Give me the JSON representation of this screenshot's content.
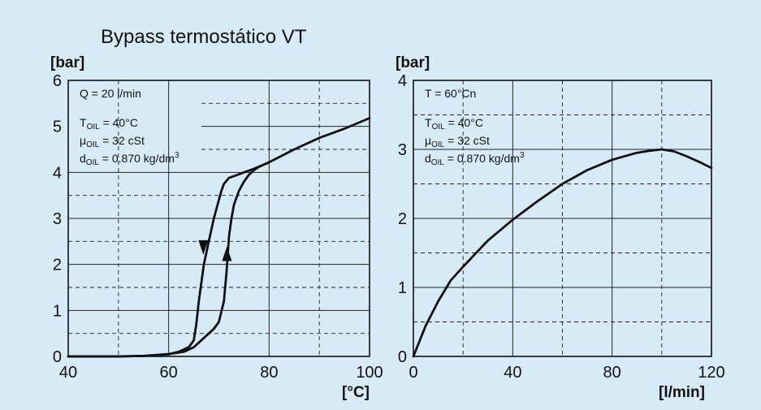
{
  "title": "Bypass termostático VT",
  "chart_data": [
    {
      "type": "line",
      "title": "Bypass termostático VT",
      "ylabel": "[bar]",
      "xlabel": "[°C]",
      "xlim": [
        40,
        100
      ],
      "ylim": [
        0,
        6
      ],
      "x_ticks": [
        "40",
        "60",
        "80",
        "100"
      ],
      "y_ticks": [
        "0",
        "1",
        "2",
        "3",
        "4",
        "5",
        "6"
      ],
      "grid": true,
      "notes": {
        "q": "Q = 20 l/min",
        "t_main": "T",
        "t_sub": "OIL",
        "t_val": " = 40°C",
        "mu_main": "μ",
        "mu_sub": "OIL",
        "mu_val": " = 32 cSt",
        "d_main": "d",
        "d_sub": "OIL",
        "d_val": " = 0.870 kg/dm",
        "d_exp": "3"
      },
      "series": [
        {
          "direction": "rising",
          "x": [
            40,
            50,
            55,
            60,
            63,
            65,
            67,
            69,
            70,
            71,
            71.5,
            72,
            72.5,
            73,
            74,
            75,
            76,
            77,
            78,
            80,
            85,
            90,
            95,
            100
          ],
          "y": [
            0,
            0,
            0.01,
            0.05,
            0.1,
            0.2,
            0.4,
            0.6,
            0.75,
            1.2,
            1.8,
            2.6,
            3.0,
            3.3,
            3.6,
            3.8,
            3.95,
            4.05,
            4.12,
            4.22,
            4.5,
            4.75,
            4.95,
            5.18
          ]
        },
        {
          "direction": "falling",
          "x": [
            40,
            50,
            55,
            60,
            62,
            64,
            65,
            65.5,
            66,
            67,
            68,
            69,
            70,
            70.5,
            71,
            72,
            73,
            75,
            77,
            80
          ],
          "y": [
            0,
            0,
            0.01,
            0.05,
            0.1,
            0.2,
            0.35,
            0.7,
            1.2,
            2.0,
            2.5,
            3.0,
            3.4,
            3.6,
            3.75,
            3.88,
            3.92,
            4.0,
            4.08,
            4.22
          ]
        }
      ]
    },
    {
      "type": "line",
      "ylabel": "[bar]",
      "xlabel": "[l/min]",
      "xlim": [
        0,
        120
      ],
      "ylim": [
        0,
        4
      ],
      "x_ticks": [
        "0",
        "40",
        "80",
        "120"
      ],
      "y_ticks": [
        "0",
        "1",
        "2",
        "3",
        "4"
      ],
      "grid": true,
      "notes": {
        "t": "T = 60°Cn",
        "t_main": "T",
        "t_sub": "OIL",
        "t_val": " = 40°C",
        "mu_main": "μ",
        "mu_sub": "OIL",
        "mu_val": " = 32 cSt",
        "d_main": "d",
        "d_sub": "OIL",
        "d_val": " = 0.870 kg/dm",
        "d_exp": "3"
      },
      "series": [
        {
          "x": [
            0,
            5,
            10,
            15,
            20,
            30,
            40,
            50,
            60,
            70,
            80,
            90,
            95,
            100,
            105,
            110,
            115,
            120
          ],
          "y": [
            0,
            0.45,
            0.8,
            1.1,
            1.3,
            1.68,
            1.98,
            2.25,
            2.5,
            2.7,
            2.85,
            2.95,
            2.98,
            3.0,
            2.97,
            2.9,
            2.82,
            2.73
          ]
        }
      ]
    }
  ]
}
